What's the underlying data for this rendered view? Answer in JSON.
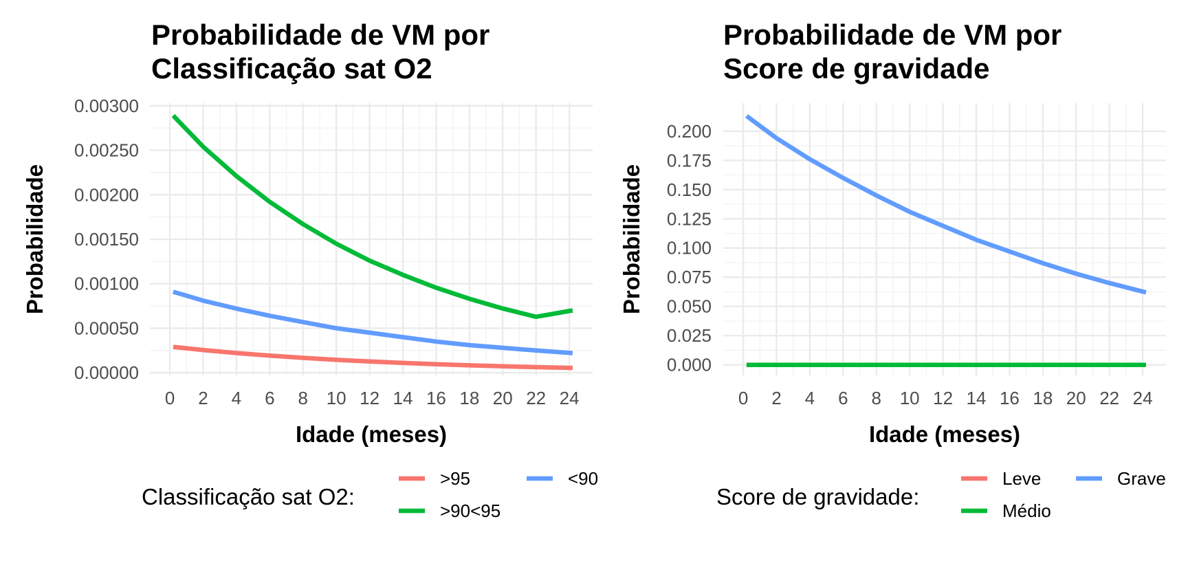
{
  "chart_data": [
    {
      "type": "line",
      "title_lines": [
        "Probabilidade de VM por",
        "Classificação sat O2"
      ],
      "xlabel": "Idade (meses)",
      "ylabel": "Probabilidade",
      "x_ticks": [
        "0",
        "2",
        "4",
        "6",
        "8",
        "10",
        "12",
        "14",
        "16",
        "18",
        "20",
        "22",
        "24"
      ],
      "y_ticks": [
        "0.00000",
        "0.00050",
        "0.00100",
        "0.00150",
        "0.00200",
        "0.00250",
        "0.00300"
      ],
      "xlim": [
        -1.2,
        25.4
      ],
      "ylim": [
        -3e-05,
        0.00303
      ],
      "grid": true,
      "legend": {
        "title": "Classificação sat O2:",
        "position": "bottom",
        "entries": [
          ">95",
          ">90<95",
          "<90"
        ]
      },
      "colors": {
        ">95": "#F8766D",
        ">90<95": "#00BA38",
        "<90": "#619CFF"
      },
      "series": [
        {
          "name": ">95",
          "color": "#F8766D",
          "x": [
            0.2,
            2,
            4,
            6,
            8,
            10,
            12,
            14,
            16,
            18,
            20,
            22,
            24.2
          ],
          "y": [
            0.00029,
            0.000255,
            0.000221,
            0.000192,
            0.000167,
            0.000145,
            0.000126,
            0.00011,
            9.6e-05,
            8.3e-05,
            7.2e-05,
            6.3e-05,
            5.4e-05
          ]
        },
        {
          "name": ">90<95",
          "color": "#00BA38",
          "x": [
            0.2,
            2,
            4,
            6,
            8,
            10,
            12,
            14,
            16,
            18,
            20,
            22,
            24.2
          ],
          "y": [
            0.00289,
            0.00254,
            0.00221,
            0.00192,
            0.00167,
            0.00145,
            0.00126,
            0.0011,
            0.000955,
            0.000831,
            0.000722,
            0.000628,
            0.0007
          ]
        },
        {
          "name": "<90",
          "color": "#619CFF",
          "x": [
            0.2,
            2,
            4,
            6,
            8,
            10,
            12,
            14,
            16,
            18,
            20,
            22,
            24.2
          ],
          "y": [
            0.00091,
            0.00081,
            0.00072,
            0.00064,
            0.00057,
            0.0005,
            0.00045,
            0.0004,
            0.00035,
            0.00031,
            0.00028,
            0.00025,
            0.00022
          ]
        }
      ]
    },
    {
      "type": "line",
      "title_lines": [
        "Probabilidade de VM por",
        "Score de gravidade"
      ],
      "xlabel": "Idade (meses)",
      "ylabel": "Probabilidade",
      "x_ticks": [
        "0",
        "2",
        "4",
        "6",
        "8",
        "10",
        "12",
        "14",
        "16",
        "18",
        "20",
        "22",
        "24"
      ],
      "y_ticks": [
        "0.000",
        "0.025",
        "0.050",
        "0.075",
        "0.100",
        "0.125",
        "0.150",
        "0.175",
        "0.200"
      ],
      "xlim": [
        -1.2,
        25.4
      ],
      "ylim": [
        -0.009,
        0.224
      ],
      "grid": true,
      "legend": {
        "title": "Score de gravidade:",
        "position": "bottom",
        "entries": [
          "Leve",
          "Médio",
          "Grave"
        ]
      },
      "colors": {
        "Leve": "#F8766D",
        "Médio": "#00BA38",
        "Grave": "#619CFF"
      },
      "series": [
        {
          "name": "Leve",
          "color": "#F8766D",
          "x": [
            0.2,
            24.2
          ],
          "y": [
            0.0,
            0.0
          ]
        },
        {
          "name": "Médio",
          "color": "#00BA38",
          "x": [
            0.2,
            24.2
          ],
          "y": [
            0.0,
            0.0
          ]
        },
        {
          "name": "Grave",
          "color": "#619CFF",
          "x": [
            0.2,
            2,
            4,
            6,
            8,
            10,
            12,
            14,
            16,
            18,
            20,
            22,
            24.2
          ],
          "y": [
            0.213,
            0.194,
            0.176,
            0.16,
            0.145,
            0.131,
            0.119,
            0.107,
            0.097,
            0.087,
            0.078,
            0.07,
            0.062
          ]
        }
      ]
    }
  ]
}
